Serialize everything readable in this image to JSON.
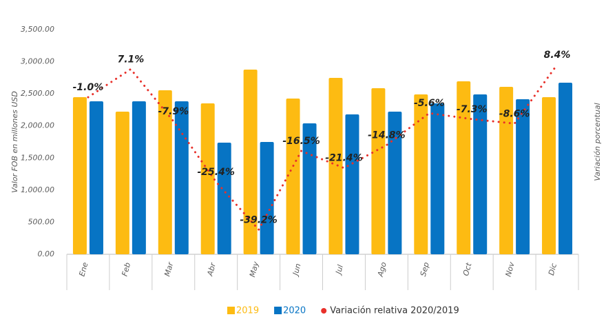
{
  "chart_data": {
    "type": "bar",
    "y_axis_label": "Valor FOB en millones USD",
    "y2_axis_label": "Variación porcentual",
    "categories": [
      "Ene",
      "Feb",
      "Mar",
      "Abr",
      "May",
      "Jun",
      "Jul",
      "Ago",
      "Sep",
      "Oct",
      "Nov",
      "Dic"
    ],
    "series": [
      {
        "name": "2019",
        "color": "#fdbb12",
        "values": [
          2448,
          2222,
          2555,
          2351,
          2877,
          2426,
          2748,
          2587,
          2491,
          2695,
          2609,
          2448
        ]
      },
      {
        "name": "2020",
        "color": "#0774c4",
        "values": [
          2383,
          2383,
          2383,
          1739,
          1750,
          2040,
          2180,
          2222,
          2351,
          2491,
          2416,
          2673
        ]
      },
      {
        "name": "Variación relativa 2020/2019",
        "color": "#e8302a",
        "type": "line",
        "axis": "y2",
        "values": [
          -1.0,
          7.1,
          -7.9,
          -25.4,
          -39.2,
          -16.5,
          -21.4,
          -14.8,
          -5.6,
          -7.3,
          -8.6,
          8.4
        ],
        "value_labels": [
          "-1.0%",
          "7.1%",
          "-7.9%",
          "-25.4%",
          "-39.2%",
          "-16.5%",
          "-21.4%",
          "-14.8%",
          "-5.6%",
          "-7.3%",
          "-8.6%",
          "8.4%"
        ]
      }
    ],
    "ylim": [
      0,
      3500
    ],
    "yticks": [
      {
        "value": 0,
        "label": "0.00"
      },
      {
        "value": 500,
        "label": "500.00"
      },
      {
        "value": 1000,
        "label": "1,000.00"
      },
      {
        "value": 1500,
        "label": "1,500.00"
      },
      {
        "value": 2000,
        "label": "2,000.00"
      },
      {
        "value": 2500,
        "label": "2,500.00"
      },
      {
        "value": 3000,
        "label": "3,000.00"
      },
      {
        "value": 3500,
        "label": "3,500.00"
      }
    ],
    "y2lim": [
      -46.3,
      18.5
    ],
    "grid": false
  }
}
